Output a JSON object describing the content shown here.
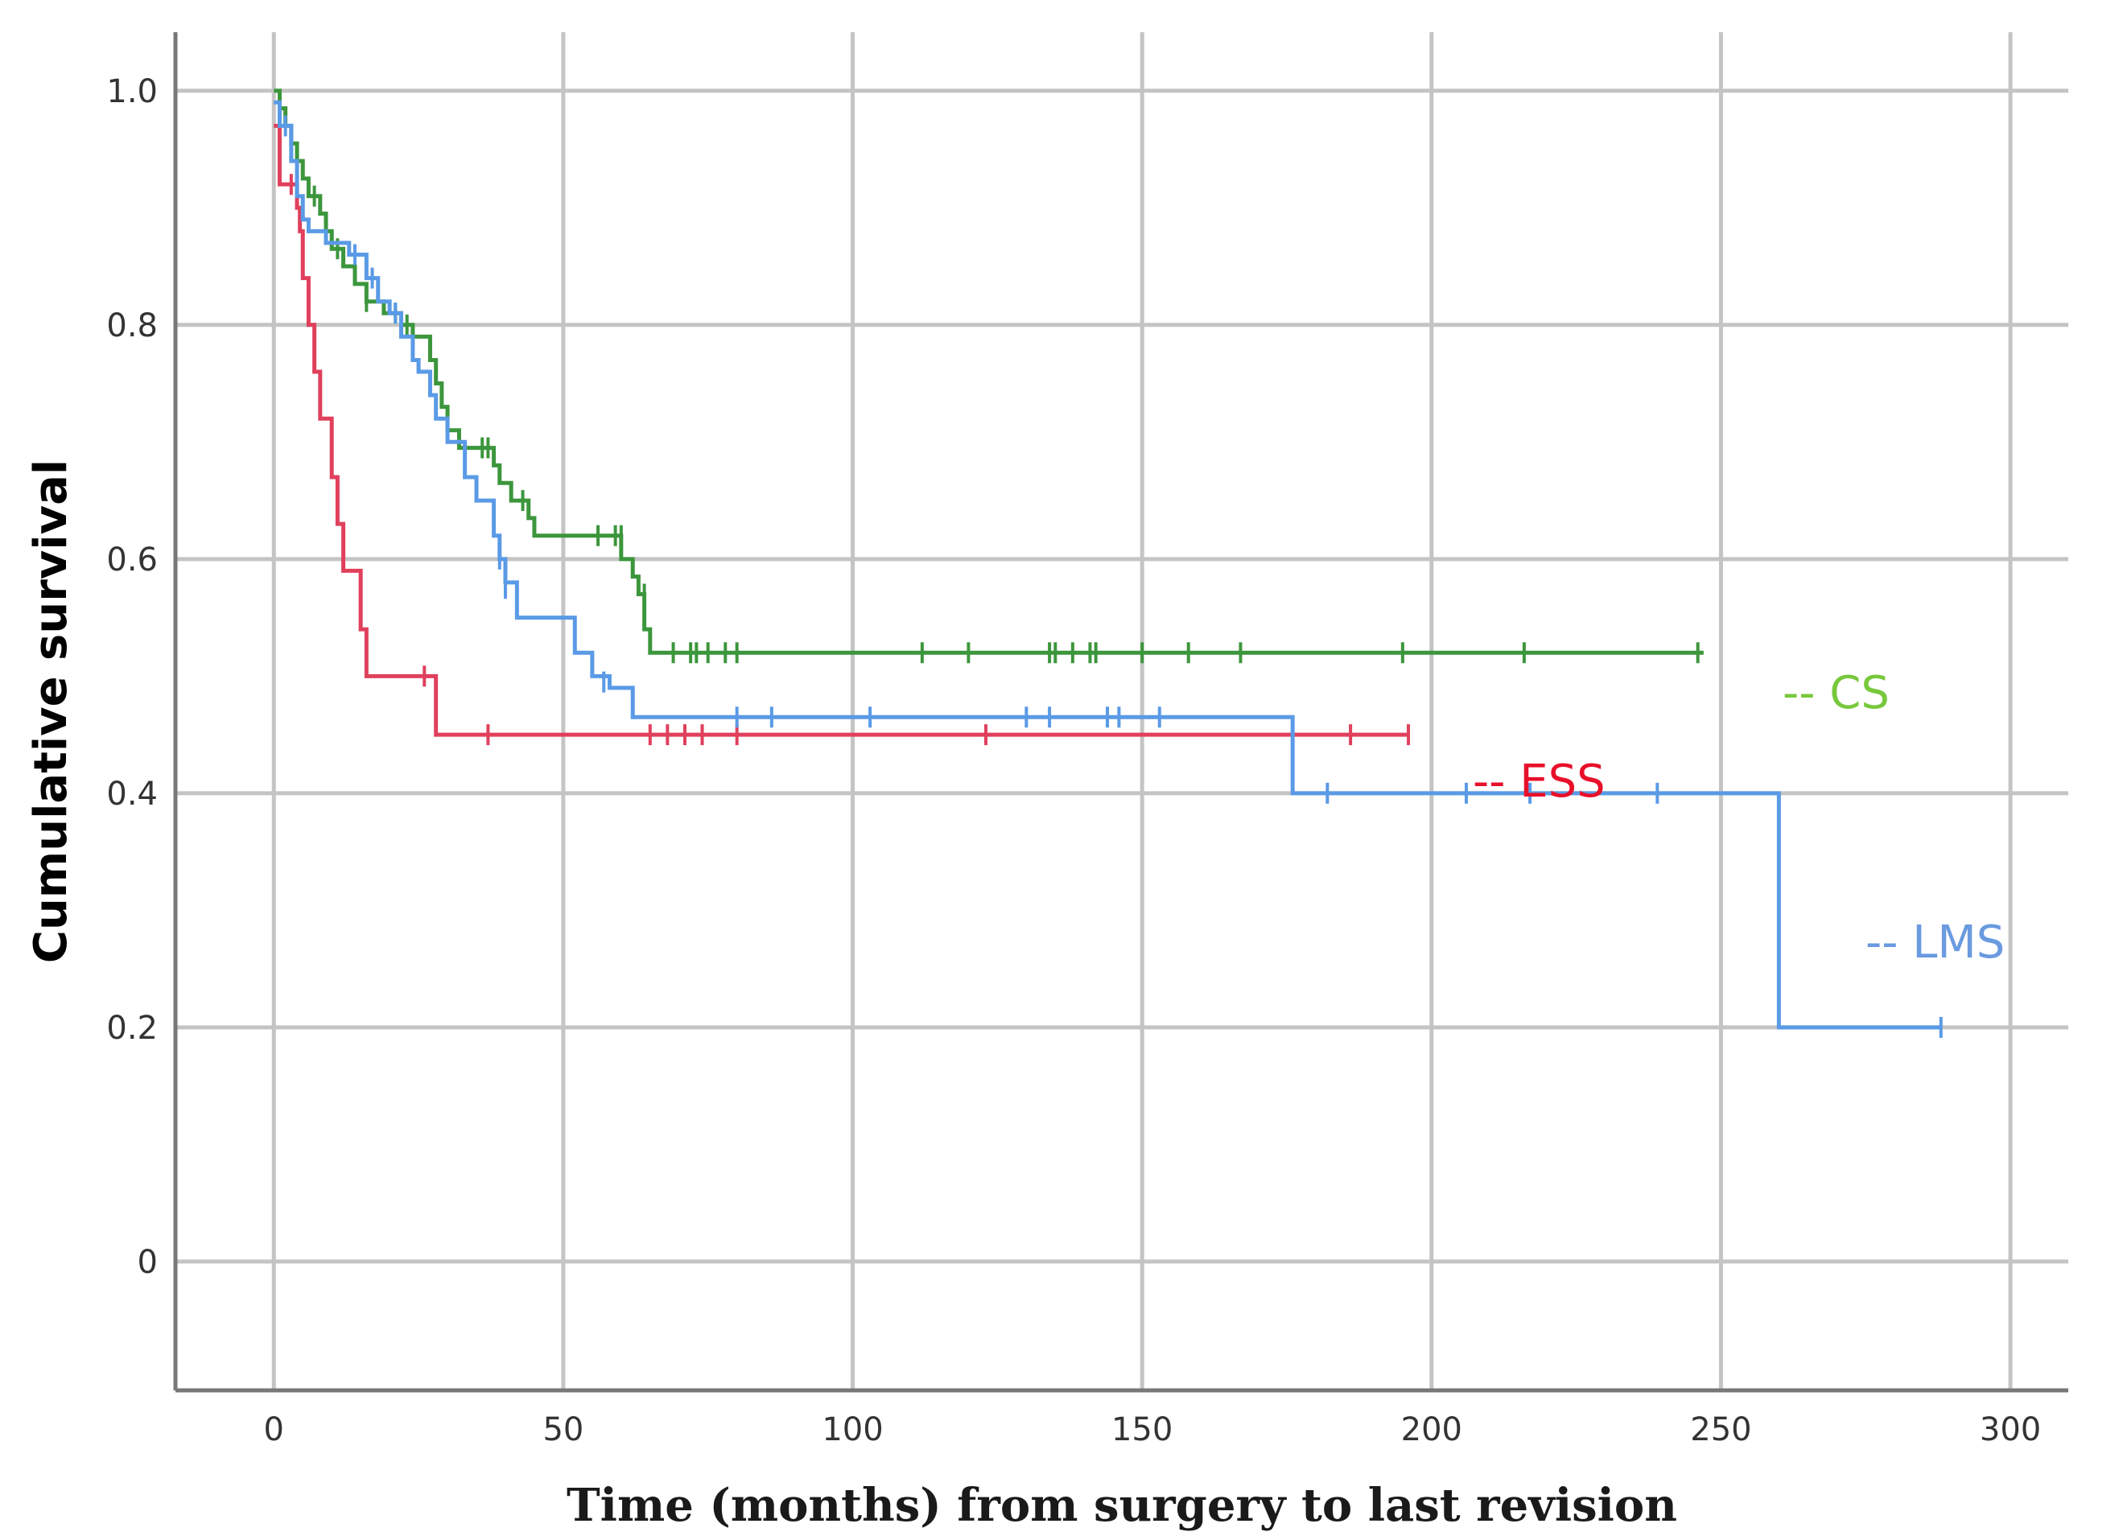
{
  "chart_data": {
    "type": "line",
    "subtype": "kaplan-meier",
    "title": "",
    "xlabel": "Time (months) from surgery to last revision",
    "ylabel": "Cumulative survival",
    "xlim": [
      -17,
      310
    ],
    "ylim": [
      -0.11,
      1.05
    ],
    "xticks": [
      0,
      50,
      100,
      150,
      200,
      250,
      300
    ],
    "xtick_labels": [
      "0",
      "50",
      "100",
      "150",
      "200",
      "250",
      "300"
    ],
    "yticks": [
      0,
      0.2,
      0.4,
      0.6,
      0.8,
      1.0
    ],
    "ytick_labels": [
      "0",
      "0.2",
      "0.4",
      "0.6",
      "0.8",
      "1.0"
    ],
    "grid": true,
    "series": [
      {
        "name": "CS",
        "legend_label": "-- CS",
        "color": "#3c963c",
        "label_color": "#78c83c",
        "steps": [
          [
            0,
            1.0
          ],
          [
            1,
            0.985
          ],
          [
            2,
            0.97
          ],
          [
            3,
            0.955
          ],
          [
            4,
            0.94
          ],
          [
            5,
            0.925
          ],
          [
            6,
            0.91
          ],
          [
            8,
            0.895
          ],
          [
            9,
            0.88
          ],
          [
            10,
            0.865
          ],
          [
            12,
            0.85
          ],
          [
            14,
            0.835
          ],
          [
            16,
            0.82
          ],
          [
            19,
            0.81
          ],
          [
            22,
            0.8
          ],
          [
            24,
            0.79
          ],
          [
            27,
            0.77
          ],
          [
            28,
            0.75
          ],
          [
            29,
            0.73
          ],
          [
            30,
            0.71
          ],
          [
            32,
            0.695
          ],
          [
            38,
            0.68
          ],
          [
            39,
            0.665
          ],
          [
            41,
            0.65
          ],
          [
            44,
            0.635
          ],
          [
            45,
            0.62
          ],
          [
            60,
            0.6
          ],
          [
            62,
            0.585
          ],
          [
            63,
            0.57
          ],
          [
            64,
            0.54
          ],
          [
            65,
            0.52
          ]
        ],
        "end_x": 247,
        "censors": [
          [
            3,
            0.955
          ],
          [
            7,
            0.91
          ],
          [
            11,
            0.865
          ],
          [
            16,
            0.82
          ],
          [
            21,
            0.81
          ],
          [
            23,
            0.8
          ],
          [
            30,
            0.71
          ],
          [
            36,
            0.695
          ],
          [
            37,
            0.695
          ],
          [
            43,
            0.65
          ],
          [
            56,
            0.62
          ],
          [
            59,
            0.62
          ],
          [
            60,
            0.62
          ],
          [
            64,
            0.57
          ],
          [
            69,
            0.52
          ],
          [
            72,
            0.52
          ],
          [
            73,
            0.52
          ],
          [
            75,
            0.52
          ],
          [
            78,
            0.52
          ],
          [
            80,
            0.52
          ],
          [
            112,
            0.52
          ],
          [
            120,
            0.52
          ],
          [
            134,
            0.52
          ],
          [
            135,
            0.52
          ],
          [
            138,
            0.52
          ],
          [
            141,
            0.52
          ],
          [
            142,
            0.52
          ],
          [
            150,
            0.52
          ],
          [
            158,
            0.52
          ],
          [
            167,
            0.52
          ],
          [
            195,
            0.52
          ],
          [
            216,
            0.52
          ],
          [
            246,
            0.52
          ]
        ]
      },
      {
        "name": "ESS",
        "legend_label": "-- ESS",
        "color": "#e0405c",
        "label_color": "#e8102a",
        "steps": [
          [
            0,
            0.97
          ],
          [
            1,
            0.92
          ],
          [
            4,
            0.9
          ],
          [
            4.5,
            0.88
          ],
          [
            5,
            0.84
          ],
          [
            6,
            0.8
          ],
          [
            7,
            0.76
          ],
          [
            8,
            0.72
          ],
          [
            10,
            0.67
          ],
          [
            11,
            0.63
          ],
          [
            12,
            0.59
          ],
          [
            15,
            0.54
          ],
          [
            16,
            0.5
          ],
          [
            28,
            0.45
          ]
        ],
        "end_x": 196,
        "censors": [
          [
            3,
            0.92
          ],
          [
            4,
            0.92
          ],
          [
            26,
            0.5
          ],
          [
            37,
            0.45
          ],
          [
            65,
            0.45
          ],
          [
            68,
            0.45
          ],
          [
            71,
            0.45
          ],
          [
            74,
            0.45
          ],
          [
            80,
            0.45
          ],
          [
            123,
            0.45
          ],
          [
            186,
            0.45
          ],
          [
            196,
            0.45
          ]
        ]
      },
      {
        "name": "LMS",
        "legend_label": "-- LMS",
        "color": "#5a9ae6",
        "label_color": "#6a9ae0",
        "steps": [
          [
            0,
            0.99
          ],
          [
            1,
            0.97
          ],
          [
            3,
            0.94
          ],
          [
            4,
            0.91
          ],
          [
            5,
            0.89
          ],
          [
            6,
            0.88
          ],
          [
            9,
            0.87
          ],
          [
            13,
            0.86
          ],
          [
            16,
            0.84
          ],
          [
            18,
            0.82
          ],
          [
            20,
            0.81
          ],
          [
            22,
            0.79
          ],
          [
            24,
            0.77
          ],
          [
            25,
            0.76
          ],
          [
            27,
            0.74
          ],
          [
            28,
            0.72
          ],
          [
            30,
            0.7
          ],
          [
            33,
            0.67
          ],
          [
            35,
            0.65
          ],
          [
            38,
            0.62
          ],
          [
            39,
            0.6
          ],
          [
            40,
            0.58
          ],
          [
            42,
            0.55
          ],
          [
            52,
            0.52
          ],
          [
            55,
            0.5
          ],
          [
            58,
            0.49
          ],
          [
            62,
            0.465
          ],
          [
            176,
            0.4
          ],
          [
            260,
            0.2
          ]
        ],
        "end_x": 288,
        "censors": [
          [
            2,
            0.97
          ],
          [
            14,
            0.86
          ],
          [
            17,
            0.84
          ],
          [
            21,
            0.81
          ],
          [
            39,
            0.6
          ],
          [
            40,
            0.575
          ],
          [
            57,
            0.495
          ],
          [
            80,
            0.465
          ],
          [
            86,
            0.465
          ],
          [
            103,
            0.465
          ],
          [
            130,
            0.465
          ],
          [
            134,
            0.465
          ],
          [
            144,
            0.465
          ],
          [
            146,
            0.465
          ],
          [
            153,
            0.465
          ],
          [
            182,
            0.4
          ],
          [
            206,
            0.4
          ],
          [
            217,
            0.4
          ],
          [
            239,
            0.4
          ],
          [
            288,
            0.2
          ]
        ]
      }
    ]
  }
}
